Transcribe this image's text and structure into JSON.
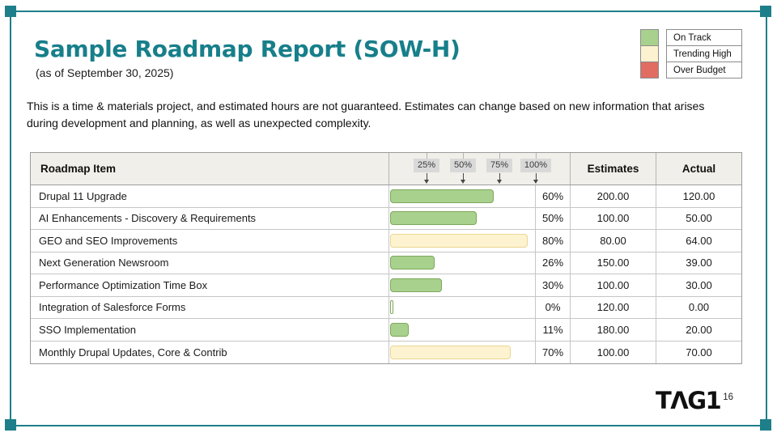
{
  "slide": {
    "title": "Sample Roadmap Report (SOW-H)",
    "subtitle": "(as of September 30, 2025)",
    "description": "This is a time & materials project, and estimated hours are not guaranteed. Estimates can change based on new information that arises during development and planning, as well as unexpected complexity.",
    "logo_text": "TΛG1",
    "page_number": "16"
  },
  "colors": {
    "accent_teal": "#1e7f8a",
    "on_track_green": "#a9d18e",
    "trending_high_cream": "#fdf3d0",
    "over_budget_red": "#e06c62",
    "header_bg": "#f0efe9",
    "marker_chip_bg": "#d9d9d9"
  },
  "legend": {
    "items": [
      {
        "label": "On Track",
        "color": "#a9d18e",
        "status": "on-track"
      },
      {
        "label": "Trending High",
        "color": "#fdf2cf",
        "status": "trending-high"
      },
      {
        "label": "Over Budget",
        "color": "#e06c62",
        "status": "over-budget"
      }
    ]
  },
  "table": {
    "headers": {
      "item": "Roadmap Item",
      "estimates": "Estimates",
      "actual": "Actual"
    },
    "scale_markers": [
      "25%",
      "50%",
      "75%",
      "100%"
    ],
    "rows": [
      {
        "item": "Drupal 11 Upgrade",
        "percent": 60,
        "percent_display": "60%",
        "status": "on-track",
        "estimate": "200.00",
        "actual": "120.00"
      },
      {
        "item": "AI Enhancements - Discovery & Requirements",
        "percent": 50,
        "percent_display": "50%",
        "status": "on-track",
        "estimate": "100.00",
        "actual": "50.00"
      },
      {
        "item": "GEO and SEO Improvements",
        "percent": 80,
        "percent_display": "80%",
        "status": "trending-high",
        "estimate": "80.00",
        "actual": "64.00"
      },
      {
        "item": "Next Generation Newsroom",
        "percent": 26,
        "percent_display": "26%",
        "status": "on-track",
        "estimate": "150.00",
        "actual": "39.00"
      },
      {
        "item": "Performance Optimization Time Box",
        "percent": 30,
        "percent_display": "30%",
        "status": "on-track",
        "estimate": "100.00",
        "actual": "30.00"
      },
      {
        "item": "Integration of Salesforce Forms",
        "percent": 0,
        "percent_display": "0%",
        "status": "on-track",
        "estimate": "120.00",
        "actual": "0.00"
      },
      {
        "item": "SSO Implementation",
        "percent": 11,
        "percent_display": "11%",
        "status": "on-track",
        "estimate": "180.00",
        "actual": "20.00"
      },
      {
        "item": "Monthly Drupal Updates, Core & Contrib",
        "percent": 70,
        "percent_display": "70%",
        "status": "trending-high",
        "estimate": "100.00",
        "actual": "70.00"
      }
    ]
  }
}
